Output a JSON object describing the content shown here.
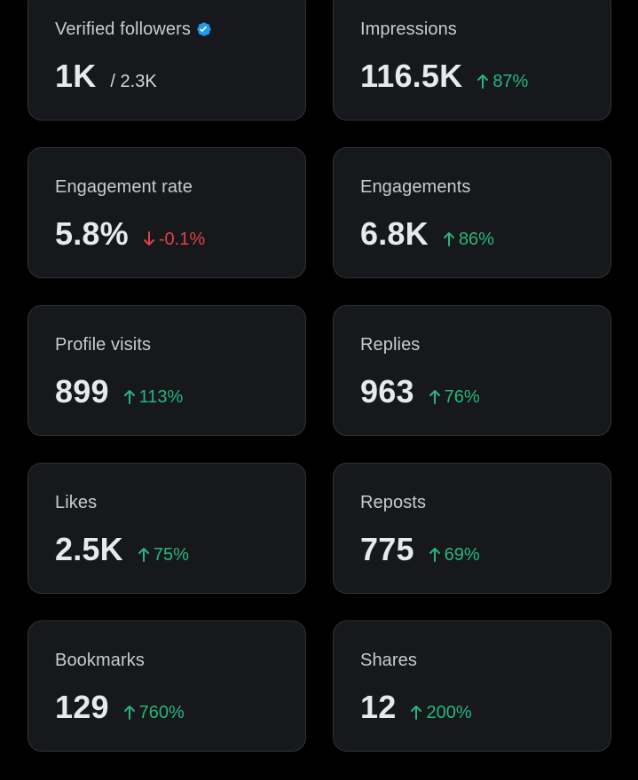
{
  "colors": {
    "background": "#000000",
    "card": "#16181c",
    "positive": "#28b57b",
    "negative": "#e0414a",
    "verified_badge": "#1d9bf0"
  },
  "metrics": [
    {
      "label": "Verified followers",
      "value": "1K",
      "total": "/ 2.3K",
      "verified": true
    },
    {
      "label": "Impressions",
      "value": "116.5K",
      "change": "87%",
      "direction": "up",
      "icon": "arrow-up-icon"
    },
    {
      "label": "Engagement rate",
      "value": "5.8%",
      "change": "-0.1%",
      "direction": "down",
      "icon": "arrow-down-icon"
    },
    {
      "label": "Engagements",
      "value": "6.8K",
      "change": "86%",
      "direction": "up",
      "icon": "arrow-up-icon"
    },
    {
      "label": "Profile visits",
      "value": "899",
      "change": "113%",
      "direction": "up",
      "icon": "arrow-up-icon"
    },
    {
      "label": "Replies",
      "value": "963",
      "change": "76%",
      "direction": "up",
      "icon": "arrow-up-icon"
    },
    {
      "label": "Likes",
      "value": "2.5K",
      "change": "75%",
      "direction": "up",
      "icon": "arrow-up-icon"
    },
    {
      "label": "Reposts",
      "value": "775",
      "change": "69%",
      "direction": "up",
      "icon": "arrow-up-icon"
    },
    {
      "label": "Bookmarks",
      "value": "129",
      "change": "760%",
      "direction": "up",
      "icon": "arrow-up-icon"
    },
    {
      "label": "Shares",
      "value": "12",
      "change": "200%",
      "direction": "up",
      "icon": "arrow-up-icon"
    }
  ]
}
